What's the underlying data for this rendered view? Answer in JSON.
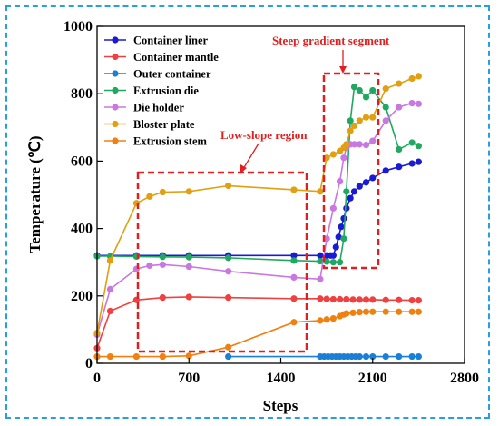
{
  "chart_data": {
    "type": "line",
    "title": "",
    "xlabel": "Steps",
    "ylabel": "Temperature (℃)",
    "xlim": [
      0,
      2800
    ],
    "ylim": [
      0,
      1000
    ],
    "xticks": [
      0,
      700,
      1400,
      2100,
      2800
    ],
    "yticks": [
      0,
      200,
      400,
      600,
      800,
      1000
    ],
    "legend_position": "top-left",
    "series": [
      {
        "name": "Container liner",
        "color": "#1a1ad6",
        "x": [
          0,
          300,
          500,
          700,
          1000,
          1500,
          1700,
          1750,
          1780,
          1800,
          1820,
          1840,
          1860,
          1880,
          1900,
          1930,
          1960,
          2000,
          2050,
          2100,
          2200,
          2300,
          2400,
          2450
        ],
        "y": [
          320,
          320,
          320,
          320,
          320,
          320,
          320,
          320,
          320,
          320,
          345,
          375,
          405,
          430,
          460,
          490,
          510,
          525,
          537,
          550,
          572,
          583,
          593,
          598
        ]
      },
      {
        "name": "Container mantle",
        "color": "#f04040",
        "x": [
          0,
          100,
          300,
          500,
          700,
          1000,
          1500,
          1700,
          1750,
          1800,
          1850,
          1900,
          1950,
          2000,
          2050,
          2100,
          2200,
          2300,
          2400,
          2450
        ],
        "y": [
          45,
          155,
          188,
          195,
          197,
          195,
          192,
          192,
          191,
          190,
          190,
          190,
          189,
          189,
          189,
          189,
          188,
          188,
          187,
          187
        ]
      },
      {
        "name": "Outer container",
        "color": "#1a7fd6",
        "x": [
          1000,
          1700,
          1730,
          1760,
          1790,
          1820,
          1850,
          1880,
          1910,
          1940,
          1970,
          2000,
          2050,
          2100,
          2200,
          2300,
          2400,
          2450
        ],
        "y": [
          20,
          20,
          20,
          20,
          20,
          20,
          20,
          20,
          20,
          20,
          20,
          20,
          20,
          20,
          20,
          20,
          20,
          20
        ]
      },
      {
        "name": "Extrusion die",
        "color": "#20a860",
        "x": [
          0,
          100,
          300,
          500,
          700,
          1000,
          1500,
          1700,
          1750,
          1800,
          1850,
          1880,
          1900,
          1930,
          1960,
          2000,
          2050,
          2100,
          2200,
          2300,
          2400,
          2450
        ],
        "y": [
          318,
          318,
          317,
          316,
          315,
          313,
          305,
          303,
          302,
          300,
          300,
          370,
          510,
          720,
          820,
          810,
          790,
          810,
          760,
          635,
          655,
          645
        ]
      },
      {
        "name": "Die holder",
        "color": "#c878e0",
        "x": [
          0,
          100,
          300,
          400,
          500,
          700,
          1000,
          1500,
          1700,
          1750,
          1800,
          1850,
          1880,
          1900,
          1930,
          1960,
          2000,
          2050,
          2100,
          2200,
          2300,
          2400,
          2450
        ],
        "y": [
          85,
          220,
          280,
          290,
          293,
          287,
          273,
          255,
          250,
          370,
          460,
          540,
          610,
          640,
          650,
          650,
          650,
          648,
          660,
          720,
          760,
          772,
          770
        ]
      },
      {
        "name": "Bloster plate",
        "color": "#e0a010",
        "x": [
          0,
          100,
          300,
          400,
          500,
          700,
          1000,
          1500,
          1700,
          1750,
          1800,
          1850,
          1880,
          1900,
          1930,
          1960,
          2000,
          2050,
          2100,
          2200,
          2300,
          2400,
          2450
        ],
        "y": [
          90,
          305,
          475,
          495,
          508,
          510,
          527,
          515,
          510,
          610,
          620,
          630,
          640,
          650,
          690,
          705,
          720,
          730,
          730,
          815,
          830,
          845,
          852
        ]
      },
      {
        "name": "Extrusion stem",
        "color": "#f08010",
        "x": [
          0,
          100,
          300,
          500,
          700,
          1000,
          1500,
          1700,
          1750,
          1800,
          1850,
          1880,
          1900,
          1950,
          2000,
          2050,
          2100,
          2200,
          2300,
          2400,
          2450
        ],
        "y": [
          20,
          20,
          20,
          20,
          22,
          48,
          122,
          127,
          130,
          133,
          140,
          145,
          148,
          150,
          152,
          153,
          153,
          153,
          153,
          153,
          153
        ]
      }
    ],
    "annotations": [
      {
        "text": "Steep gradient segment",
        "color": "#e02020"
      },
      {
        "text": "Low-slope region",
        "color": "#e02020"
      }
    ]
  }
}
